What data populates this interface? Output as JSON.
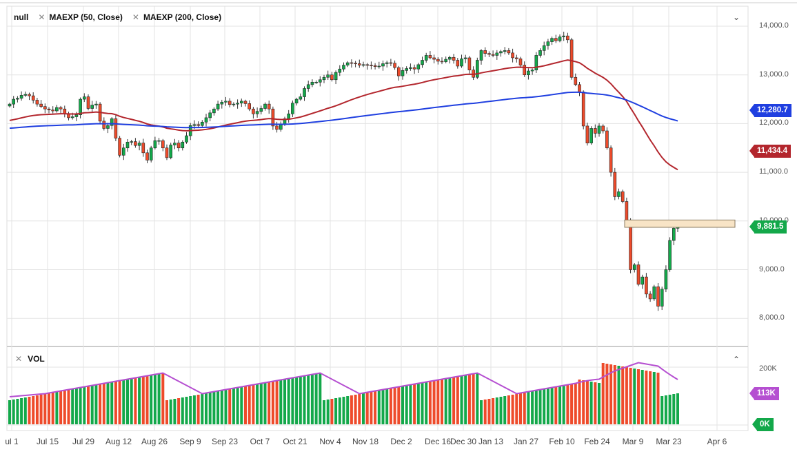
{
  "legend": {
    "series_name": "null",
    "indicators": [
      {
        "label": "MAEXP (50, Close)",
        "color": "#b3262d"
      },
      {
        "label": "MAEXP (200, Close)",
        "color": "#1f3fe0"
      }
    ]
  },
  "volume_pane": {
    "label": "VOL"
  },
  "colors": {
    "up": "#13a84a",
    "down": "#ee4b2b",
    "ma50": "#b3262d",
    "ma200": "#1f3fe0",
    "vol_ma": "#b54fd1",
    "grid": "#e3e3e3",
    "zone_fill": "#f8e4c6",
    "zone_stroke": "#8a7a60"
  },
  "price_axis": {
    "ticks": [
      "14,000.0",
      "13,000.0",
      "12,000.0",
      "11,000.0",
      "10,000.0",
      "9,000.0",
      "8,000.0"
    ],
    "tick_values": [
      14000,
      13000,
      12000,
      11000,
      10000,
      9000,
      8000
    ],
    "tags": [
      {
        "label": "12,280.7",
        "value": 12280.7,
        "color": "#1f3fe0"
      },
      {
        "label": "11,434.4",
        "value": 11434.4,
        "color": "#b3262d"
      },
      {
        "label": "9,881.5",
        "value": 9881.5,
        "color": "#13a84a"
      }
    ]
  },
  "volume_axis": {
    "ticks": [
      "200K"
    ],
    "tags": [
      {
        "label": "113K",
        "color": "#b54fd1"
      },
      {
        "label": "0K",
        "color": "#13a84a"
      }
    ]
  },
  "x_axis": {
    "labels": [
      "ul 1",
      "Jul 15",
      "Jul 29",
      "Aug 12",
      "Aug 26",
      "Sep 9",
      "Sep 23",
      "Oct 7",
      "Oct 21",
      "Nov 4",
      "Nov 18",
      "Dec 2",
      "Dec 16",
      "Dec 30",
      "Jan 13",
      "Jan 27",
      "Feb 10",
      "Feb 24",
      "Mar 9",
      "Mar 23",
      "Apr 6"
    ],
    "positions": [
      17,
      69,
      121,
      172,
      224,
      276,
      326,
      377,
      428,
      479,
      530,
      582,
      635,
      672,
      712,
      763,
      815,
      866,
      918,
      970,
      1040
    ]
  },
  "chart_data": {
    "type": "candlestick",
    "title": "null",
    "indicators": [
      "MAEXP (50, Close)",
      "MAEXP (200, Close)",
      "VOL"
    ],
    "ylim": [
      7800,
      14300
    ],
    "y_ticks": [
      8000,
      9000,
      10000,
      11000,
      12000,
      13000,
      14000
    ],
    "last_close": 9881.5,
    "ma50_last": 11434.4,
    "ma200_last": 12280.7,
    "volume_ma_last": "113K",
    "resistance_zone": {
      "from_date": "Mar 9",
      "to_date": "Apr 6",
      "low": 9870,
      "high": 10020
    },
    "closes": [
      12400,
      12500,
      12520,
      12580,
      12600,
      12570,
      12480,
      12400,
      12350,
      12300,
      12280,
      12260,
      12330,
      12300,
      12200,
      12120,
      12140,
      12180,
      12500,
      12550,
      12310,
      12380,
      12400,
      12050,
      11900,
      11960,
      12100,
      11700,
      11350,
      11500,
      11620,
      11630,
      11550,
      11600,
      11400,
      11250,
      11500,
      11650,
      11650,
      11500,
      11300,
      11560,
      11600,
      11500,
      11620,
      11750,
      11960,
      11980,
      11960,
      12030,
      12120,
      12220,
      12300,
      12400,
      12440,
      12460,
      12390,
      12400,
      12420,
      12460,
      12410,
      12300,
      12200,
      12250,
      12310,
      12400,
      12300,
      11950,
      11880,
      11980,
      12100,
      12200,
      12420,
      12500,
      12550,
      12720,
      12800,
      12850,
      12850,
      12900,
      12950,
      13000,
      12900,
      13050,
      13120,
      13200,
      13250,
      13240,
      13230,
      13200,
      13210,
      13200,
      13190,
      13170,
      13180,
      13230,
      13250,
      13240,
      13150,
      12980,
      13090,
      13130,
      13150,
      13120,
      13210,
      13300,
      13400,
      13350,
      13320,
      13280,
      13270,
      13320,
      13360,
      13300,
      13180,
      13330,
      13350,
      13100,
      12950,
      13300,
      13500,
      13440,
      13420,
      13400,
      13450,
      13480,
      13500,
      13450,
      13350,
      13330,
      13200,
      13000,
      13080,
      13100,
      13400,
      13500,
      13600,
      13680,
      13750,
      13700,
      13780,
      13800,
      13720,
      12950,
      12800,
      12650,
      11950,
      11600,
      11900,
      11800,
      11950,
      11850,
      11500,
      11000,
      10500,
      10600,
      10400,
      10000,
      9000,
      9100,
      8700,
      8850,
      8500,
      8400,
      8650,
      8250,
      8600,
      9000,
      9600,
      9850,
      9881.5
    ],
    "volume_approx_k": "bars 120-230K range, MA ~113K"
  }
}
